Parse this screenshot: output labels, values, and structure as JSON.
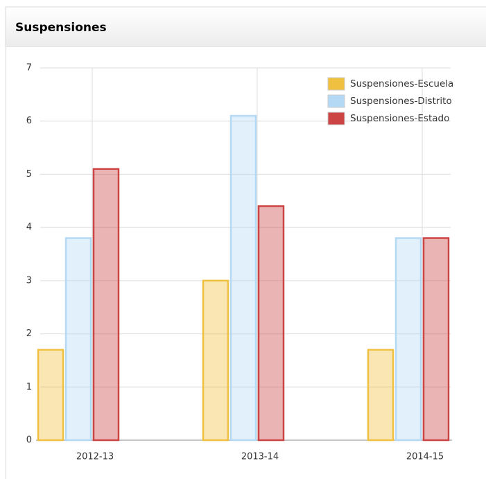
{
  "chart_data": {
    "type": "bar",
    "title": "Suspensiones",
    "categories": [
      "2012-13",
      "2013-14",
      "2014-15"
    ],
    "series": [
      {
        "name": "Suspensiones-Escuela",
        "color": "#f0c040",
        "values": [
          1.7,
          3.0,
          1.7
        ]
      },
      {
        "name": "Suspensiones-Distrito",
        "color": "#b3d9f5",
        "values": [
          3.8,
          6.1,
          3.8
        ]
      },
      {
        "name": "Suspensiones-Estado",
        "color": "#cc4444",
        "values": [
          5.1,
          4.4,
          3.8
        ]
      }
    ],
    "ylim": [
      0,
      7
    ],
    "yticks": [
      0,
      1,
      2,
      3,
      4,
      5,
      6,
      7
    ],
    "grid": true,
    "legend": "top-right"
  }
}
